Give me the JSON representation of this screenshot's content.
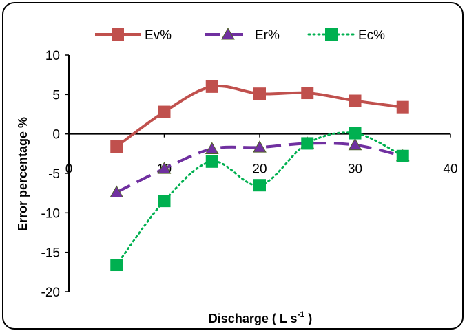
{
  "chart_data": {
    "type": "line",
    "title": "",
    "xlabel": "Discharge ( L s",
    "xlabel_sup": "-1",
    "xlabel_end": " )",
    "ylabel": "Error percentage %",
    "xlim": [
      0,
      40
    ],
    "ylim": [
      -20,
      10
    ],
    "xticks": [
      "0",
      "10",
      "20",
      "30",
      "40"
    ],
    "yticks": [
      "10",
      "5",
      "0",
      "-5",
      "-10",
      "-15",
      "-20"
    ],
    "grid": false,
    "legend_position": "top",
    "series": [
      {
        "name": "Ev%",
        "color": "#c0504d",
        "dash": "solid",
        "marker": "square",
        "x": [
          5,
          10,
          15,
          20,
          25,
          30,
          35
        ],
        "values": [
          -1.6,
          2.8,
          6.0,
          5.1,
          5.2,
          4.2,
          3.4
        ]
      },
      {
        "name": "Er%",
        "color": "#7030a0",
        "dash": "dash",
        "marker": "triangle",
        "x": [
          5,
          10,
          15,
          20,
          25,
          30,
          35
        ],
        "values": [
          -7.4,
          -4.4,
          -1.9,
          -1.7,
          -1.2,
          -1.4,
          -2.8
        ]
      },
      {
        "name": "Ec%",
        "color": "#00b050",
        "dash": "dot",
        "marker": "square",
        "x": [
          5,
          10,
          15,
          20,
          25,
          30,
          35
        ],
        "values": [
          -16.6,
          -8.5,
          -3.5,
          -6.5,
          -1.2,
          0.1,
          -2.8
        ]
      }
    ]
  }
}
